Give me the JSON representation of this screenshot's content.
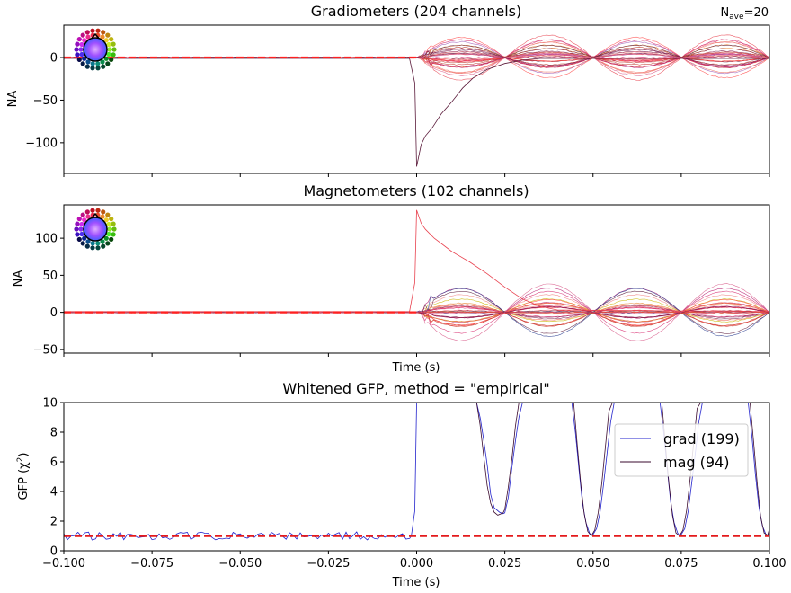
{
  "chart_data": [
    {
      "type": "line",
      "title": "Gradiometers (204 channels)",
      "annotation": {
        "main": "N",
        "sub": "ave",
        "value": "=20"
      },
      "xlabel": "",
      "ylabel": "NA",
      "xlim": [
        -0.1,
        0.1
      ],
      "ylim": [
        -136,
        38
      ],
      "xticks": [
        -0.1,
        -0.075,
        -0.05,
        -0.025,
        0.0,
        0.025,
        0.05,
        0.075,
        0.1
      ],
      "yticks": [
        0,
        -50,
        -100
      ],
      "ytick_labels": [
        "0",
        "−50",
        "−100"
      ],
      "baseline": 0,
      "channel_count": 204,
      "peak": {
        "x": 0.0,
        "y": -128
      },
      "dominant_trace": [
        [
          -0.1,
          -1
        ],
        [
          -0.002,
          -1
        ],
        [
          -0.0005,
          -30
        ],
        [
          0.0,
          -128
        ],
        [
          0.0013,
          -102
        ],
        [
          0.0025,
          -92
        ],
        [
          0.0045,
          -82
        ],
        [
          0.007,
          -66
        ],
        [
          0.01,
          -52
        ],
        [
          0.013,
          -36
        ],
        [
          0.016,
          -24
        ],
        [
          0.02,
          -14
        ],
        [
          0.025,
          -7
        ],
        [
          0.03,
          -3
        ],
        [
          0.035,
          -1
        ],
        [
          0.1,
          -1
        ]
      ],
      "envelope": {
        "pattern": "sinusoidal bursts after stimulus",
        "max_amplitude": 28,
        "bursts": [
          {
            "x": [
              0.0,
              0.025
            ],
            "peak_x": 0.0125
          },
          {
            "x": [
              0.025,
              0.05
            ],
            "peak_x": 0.0375
          },
          {
            "x": [
              0.05,
              0.075
            ],
            "peak_x": 0.0625
          },
          {
            "x": [
              0.075,
              0.1
            ],
            "peak_x": 0.0875
          }
        ]
      },
      "colors": [
        "#e8414e",
        "#d6266b",
        "#b51c6f",
        "#f06a5a",
        "#ff4a4a",
        "#c0392b",
        "#7a1a4a",
        "#d85a8a",
        "#f08080",
        "#5a1a3a",
        "#9b59b6",
        "#e67e22"
      ],
      "legend": "sensor-topomap-top-left"
    },
    {
      "type": "line",
      "title": "Magnetometers (102 channels)",
      "xlabel": "Time (s)",
      "ylabel": "NA",
      "xlim": [
        -0.1,
        0.1
      ],
      "ylim": [
        -55,
        145
      ],
      "xticks": [
        -0.1,
        -0.075,
        -0.05,
        -0.025,
        0.0,
        0.025,
        0.05,
        0.075,
        0.1
      ],
      "yticks": [
        100,
        50,
        0,
        -50
      ],
      "ytick_labels": [
        "100",
        "50",
        "0",
        "−50"
      ],
      "baseline": 0,
      "channel_count": 102,
      "peak": {
        "x": 0.0,
        "y": 138
      },
      "dominant_trace": [
        [
          -0.1,
          1
        ],
        [
          -0.002,
          1
        ],
        [
          -0.0005,
          40
        ],
        [
          0.0,
          138
        ],
        [
          0.0013,
          120
        ],
        [
          0.0025,
          112
        ],
        [
          0.005,
          100
        ],
        [
          0.01,
          82
        ],
        [
          0.015,
          68
        ],
        [
          0.02,
          52
        ],
        [
          0.025,
          34
        ],
        [
          0.03,
          18
        ],
        [
          0.035,
          8
        ],
        [
          0.04,
          3
        ],
        [
          0.1,
          1
        ]
      ],
      "envelope": {
        "pattern": "sinusoidal bursts after stimulus",
        "max_amplitude": 44,
        "bursts": [
          {
            "x": [
              0.0,
              0.025
            ],
            "peak_x": 0.0125
          },
          {
            "x": [
              0.025,
              0.05
            ],
            "peak_x": 0.0375
          },
          {
            "x": [
              0.05,
              0.075
            ],
            "peak_x": 0.0625
          },
          {
            "x": [
              0.075,
              0.1
            ],
            "peak_x": 0.0875
          }
        ]
      },
      "colors": [
        "#e8414e",
        "#d6266b",
        "#b51c6f",
        "#f06a5a",
        "#ff4a4a",
        "#c0392b",
        "#7a1a4a",
        "#d85a8a",
        "#f08080",
        "#5a1a3a",
        "#c8b400",
        "#e67e22",
        "#2c3e90"
      ],
      "legend": "sensor-topomap-top-left"
    },
    {
      "type": "line",
      "title": "Whitened GFP, method = \"empirical\"",
      "xlabel": "Time (s)",
      "ylabel": "GFP (χ²)",
      "xlim": [
        -0.1,
        0.1
      ],
      "ylim": [
        0,
        10
      ],
      "xticks": [
        -0.1,
        -0.075,
        -0.05,
        -0.025,
        0.0,
        0.025,
        0.05,
        0.075,
        0.1
      ],
      "xtick_labels": [
        "−0.100",
        "−0.075",
        "−0.050",
        "−0.025",
        "0.000",
        "0.025",
        "0.050",
        "0.075",
        "0.100"
      ],
      "yticks": [
        0,
        2,
        4,
        6,
        8,
        10
      ],
      "reference_line": {
        "y": 1,
        "color": "#e41a1c",
        "style": "dashed"
      },
      "legend": "right",
      "series": [
        {
          "name": "grad (199)",
          "color": "#2222cc",
          "points": [
            [
              -0.0015,
              1
            ],
            [
              -0.0005,
              2.7
            ],
            [
              0.0,
              10
            ],
            [
              0.017,
              10
            ],
            [
              0.018,
              9
            ],
            [
              0.019,
              7.5
            ],
            [
              0.02,
              5.8
            ],
            [
              0.021,
              3.8
            ],
            [
              0.022,
              2.9
            ],
            [
              0.0235,
              2.6
            ],
            [
              0.0245,
              2.5
            ],
            [
              0.025,
              2.55
            ],
            [
              0.026,
              3.6
            ],
            [
              0.027,
              5.6
            ],
            [
              0.028,
              7.4
            ],
            [
              0.029,
              9
            ],
            [
              0.03,
              10
            ],
            [
              0.044,
              10
            ],
            [
              0.045,
              8
            ],
            [
              0.046,
              5.5
            ],
            [
              0.047,
              3.2
            ],
            [
              0.048,
              1.9
            ],
            [
              0.049,
              1.2
            ],
            [
              0.0495,
              1.05
            ],
            [
              0.05,
              1.1
            ],
            [
              0.051,
              1.5
            ],
            [
              0.052,
              2.6
            ],
            [
              0.053,
              4.5
            ],
            [
              0.054,
              6.6
            ],
            [
              0.055,
              8.7
            ],
            [
              0.056,
              10
            ],
            [
              0.069,
              10
            ],
            [
              0.07,
              8
            ],
            [
              0.071,
              5.6
            ],
            [
              0.072,
              3.3
            ],
            [
              0.073,
              1.9
            ],
            [
              0.074,
              1.2
            ],
            [
              0.0745,
              1.05
            ],
            [
              0.075,
              1.1
            ],
            [
              0.076,
              1.5
            ],
            [
              0.077,
              2.7
            ],
            [
              0.078,
              4.6
            ],
            [
              0.079,
              6.6
            ],
            [
              0.08,
              8.7
            ],
            [
              0.081,
              10
            ],
            [
              0.094,
              10
            ],
            [
              0.095,
              7.8
            ],
            [
              0.096,
              5.2
            ],
            [
              0.097,
              3
            ],
            [
              0.098,
              1.7
            ],
            [
              0.099,
              1.1
            ],
            [
              0.0995,
              1.05
            ],
            [
              0.1,
              1.3
            ]
          ]
        },
        {
          "name": "mag (94)",
          "color": "#3a0a2e",
          "points": [
            [
              0.0,
              10
            ],
            [
              0.017,
              10
            ],
            [
              0.018,
              8.5
            ],
            [
              0.019,
              6.4
            ],
            [
              0.02,
              4.4
            ],
            [
              0.021,
              3.2
            ],
            [
              0.022,
              2.6
            ],
            [
              0.023,
              2.4
            ],
            [
              0.0245,
              2.55
            ],
            [
              0.025,
              2.8
            ],
            [
              0.026,
              4.3
            ],
            [
              0.027,
              6.2
            ],
            [
              0.028,
              8.4
            ],
            [
              0.029,
              10
            ],
            [
              0.0445,
              10
            ],
            [
              0.0455,
              7.2
            ],
            [
              0.0465,
              4.6
            ],
            [
              0.0475,
              2.5
            ],
            [
              0.0485,
              1.3
            ],
            [
              0.0495,
              1
            ],
            [
              0.0505,
              1.4
            ],
            [
              0.0515,
              2.6
            ],
            [
              0.0525,
              4.6
            ],
            [
              0.0535,
              7
            ],
            [
              0.0545,
              9.4
            ],
            [
              0.0555,
              10
            ],
            [
              0.0695,
              10
            ],
            [
              0.0705,
              7.2
            ],
            [
              0.0715,
              4.6
            ],
            [
              0.0725,
              2.4
            ],
            [
              0.0735,
              1.2
            ],
            [
              0.0745,
              1
            ],
            [
              0.0755,
              1.4
            ],
            [
              0.0765,
              2.7
            ],
            [
              0.0775,
              4.8
            ],
            [
              0.0785,
              7.2
            ],
            [
              0.0795,
              9.6
            ],
            [
              0.0805,
              10
            ],
            [
              0.0945,
              10
            ],
            [
              0.0955,
              7.4
            ],
            [
              0.0965,
              4.6
            ],
            [
              0.0975,
              2.3
            ],
            [
              0.0985,
              1.2
            ],
            [
              0.0995,
              1.05
            ],
            [
              0.1,
              1.5
            ]
          ]
        }
      ]
    }
  ]
}
